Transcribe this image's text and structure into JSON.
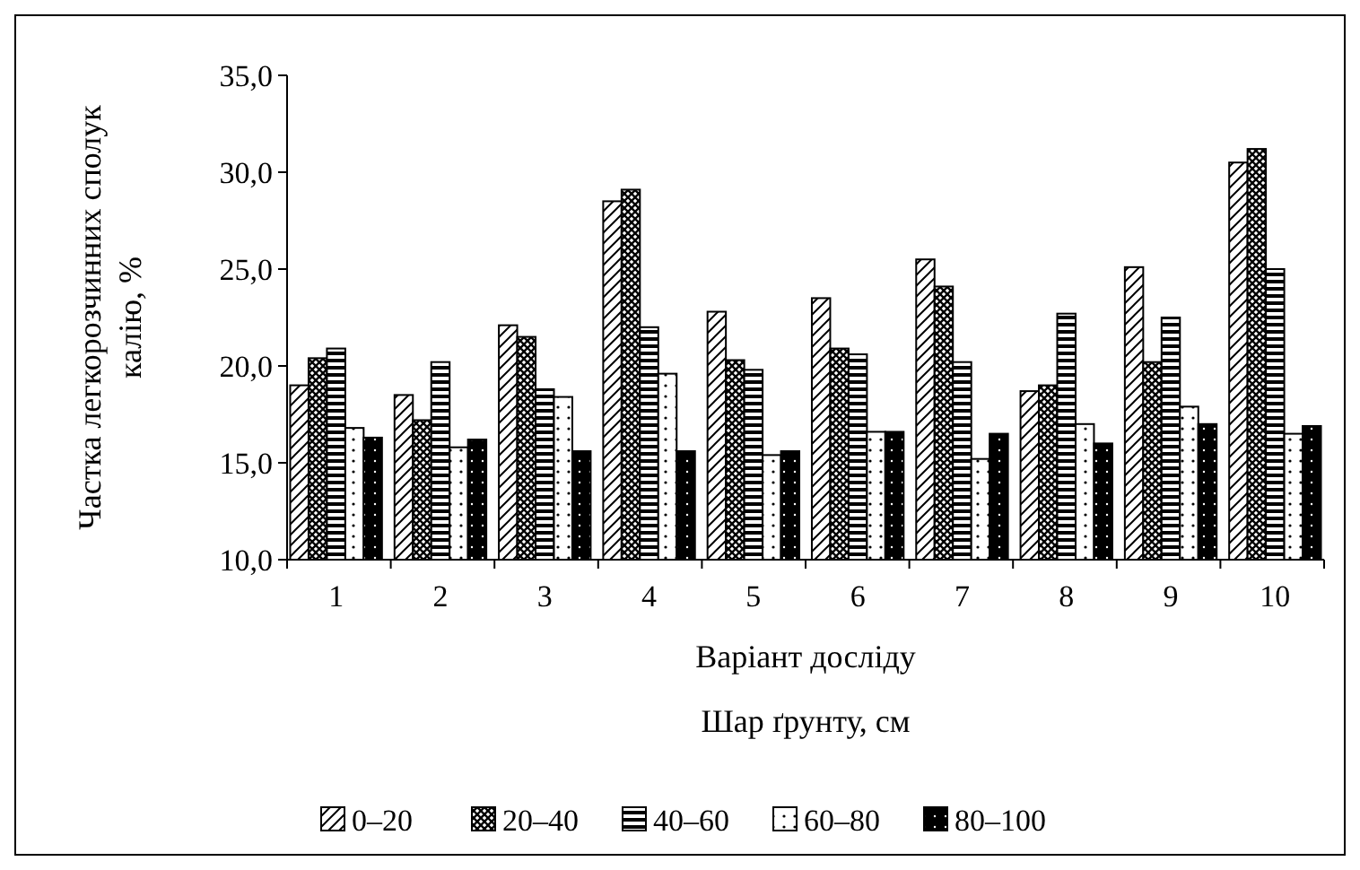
{
  "chart_data": {
    "type": "bar",
    "xlabel": "Варіант досліду",
    "ylabel": "Частка легкорозчинних сполук калію, %",
    "legend_title": "Шар ґрунту, см",
    "legend": "bottom",
    "categories": [
      "1",
      "2",
      "3",
      "4",
      "5",
      "6",
      "7",
      "8",
      "9",
      "10"
    ],
    "ylim": [
      10,
      35
    ],
    "yticks": [
      {
        "value": 10,
        "label": "10,0"
      },
      {
        "value": 15,
        "label": "15,0"
      },
      {
        "value": 20,
        "label": "20,0"
      },
      {
        "value": 25,
        "label": "25,0"
      },
      {
        "value": 30,
        "label": "30,0"
      },
      {
        "value": 35,
        "label": "35,0"
      }
    ],
    "series": [
      {
        "name": "0–20",
        "color": "#000000",
        "values": [
          19.0,
          18.5,
          22.1,
          28.5,
          22.8,
          23.5,
          25.5,
          18.7,
          25.1,
          30.5
        ]
      },
      {
        "name": "20–40",
        "color": "#000000",
        "values": [
          20.4,
          17.2,
          21.5,
          29.1,
          20.3,
          20.9,
          24.1,
          19.0,
          20.2,
          31.2
        ]
      },
      {
        "name": "40–60",
        "color": "#000000",
        "values": [
          20.9,
          20.2,
          18.8,
          22.0,
          19.8,
          20.6,
          20.2,
          22.7,
          22.5,
          25.0
        ]
      },
      {
        "name": "60–80",
        "color": "#000000",
        "values": [
          16.8,
          15.8,
          18.4,
          19.6,
          15.4,
          16.6,
          15.2,
          17.0,
          17.9,
          16.5
        ]
      },
      {
        "name": "80–100",
        "color": "#000000",
        "values": [
          16.3,
          16.2,
          15.6,
          15.6,
          15.6,
          16.6,
          16.5,
          16.0,
          17.0,
          16.9
        ]
      }
    ]
  }
}
